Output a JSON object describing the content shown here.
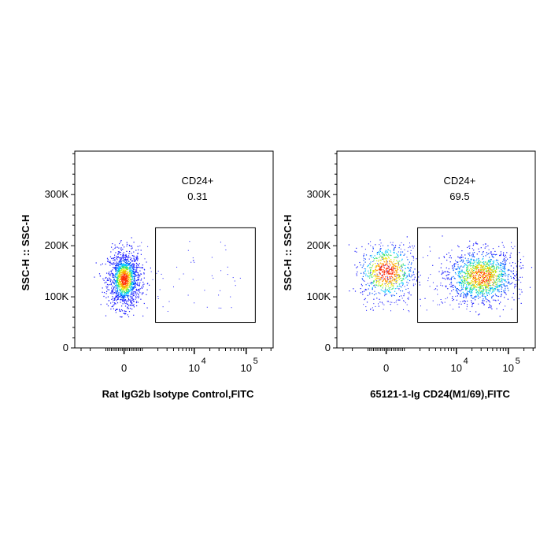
{
  "chart_data": [
    {
      "type": "scatter",
      "subtype": "flow-cytometry-density-dot-plot",
      "xlabel": "Rat IgG2b Isotype Control,FITC",
      "ylabel": "SSC-H :: SSC-H",
      "x_scale": "biexponential",
      "x_ticks": [
        {
          "value": 0,
          "label": "0"
        },
        {
          "value": 10000,
          "label": "10",
          "exp": "4"
        },
        {
          "value": 100000,
          "label": "10",
          "exp": "5"
        }
      ],
      "y_ticks": [
        {
          "value": 0,
          "label": "0"
        },
        {
          "value": 100000,
          "label": "100K"
        },
        {
          "value": 200000,
          "label": "200K"
        },
        {
          "value": 300000,
          "label": "300K"
        }
      ],
      "ylim": [
        0,
        385000
      ],
      "gate": {
        "name": "CD24+",
        "percent": "0.31",
        "x_range": [
          1800,
          150000
        ],
        "y_range": [
          50000,
          235000
        ]
      },
      "populations": [
        {
          "x_center": 0,
          "y_center": 135000,
          "points": 1400,
          "description": "main CD24- cluster"
        }
      ],
      "colors": {
        "low": "#1a1aff",
        "mid": "#00c8ff",
        "mid2": "#30e060",
        "high": "#ff2a00"
      }
    },
    {
      "type": "scatter",
      "subtype": "flow-cytometry-density-dot-plot",
      "xlabel": "65121-1-Ig CD24(M1/69),FITC",
      "ylabel": "SSC-H :: SSC-H",
      "x_scale": "biexponential",
      "x_ticks": [
        {
          "value": 0,
          "label": "0"
        },
        {
          "value": 10000,
          "label": "10",
          "exp": "4"
        },
        {
          "value": 100000,
          "label": "10",
          "exp": "5"
        }
      ],
      "y_ticks": [
        {
          "value": 0,
          "label": "0"
        },
        {
          "value": 100000,
          "label": "100K"
        },
        {
          "value": 200000,
          "label": "200K"
        },
        {
          "value": 300000,
          "label": "300K"
        }
      ],
      "ylim": [
        0,
        385000
      ],
      "gate": {
        "name": "CD24+",
        "percent": "69.5",
        "x_range": [
          1800,
          150000
        ],
        "y_range": [
          50000,
          235000
        ]
      },
      "populations": [
        {
          "x_center": 0,
          "y_center": 150000,
          "points": 650,
          "description": "CD24- cluster"
        },
        {
          "x_center": 30000,
          "y_center": 140000,
          "points": 1300,
          "description": "CD24+ cluster"
        }
      ],
      "colors": {
        "low": "#1a1aff",
        "mid": "#00c8ff",
        "mid2": "#30e060",
        "high": "#ff2a00"
      }
    }
  ]
}
